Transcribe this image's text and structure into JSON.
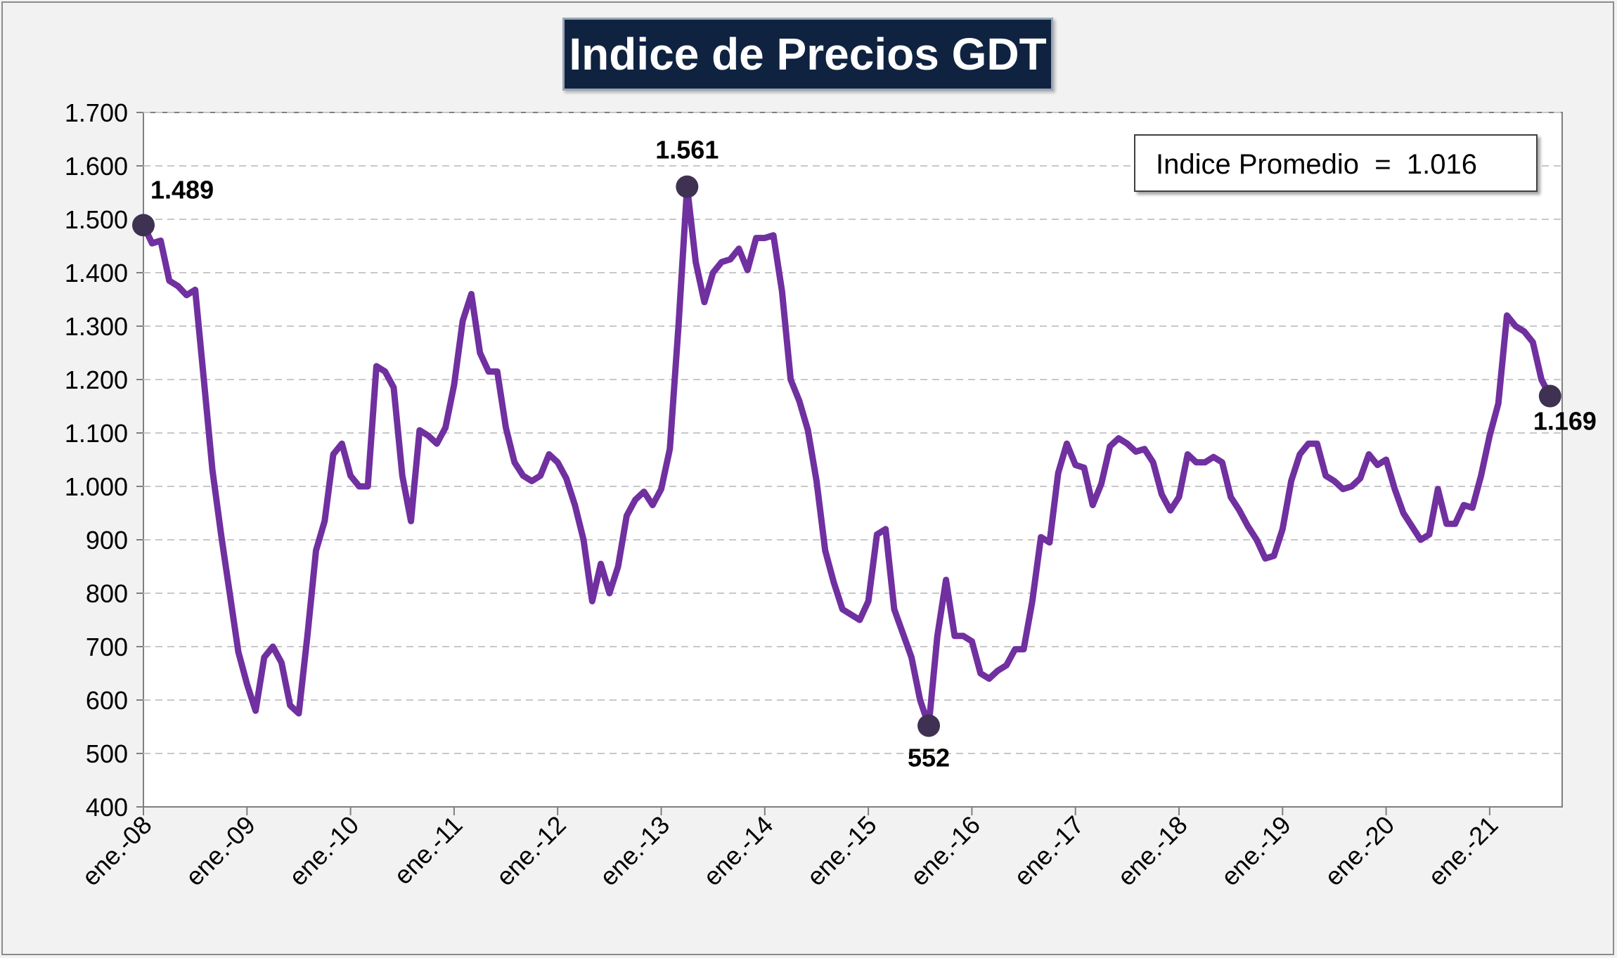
{
  "chart_data": {
    "type": "line",
    "title": "Indice de Precios GDT",
    "ylim": [
      400,
      1700
    ],
    "yticks": [
      400,
      500,
      600,
      700,
      800,
      900,
      1000,
      1100,
      1200,
      1300,
      1400,
      1500,
      1600,
      1700
    ],
    "ytick_labels": [
      "400",
      "500",
      "600",
      "700",
      "800",
      "900",
      "1.000",
      "1.100",
      "1.200",
      "1.300",
      "1.400",
      "1.500",
      "1.600",
      "1.700"
    ],
    "xtick_labels": [
      "ene.-08",
      "ene.-09",
      "ene.-10",
      "ene.-11",
      "ene.-12",
      "ene.-13",
      "ene.-14",
      "ene.-15",
      "ene.-16",
      "ene.-17",
      "ene.-18",
      "ene.-19",
      "ene.-20",
      "ene.-21"
    ],
    "x_start": "2008-01",
    "grid": true,
    "series_color": "#7030a0",
    "marker_color": "#3f3151",
    "legend_box": {
      "text": "Indice Promedio  =  1.016"
    },
    "annotations": [
      {
        "index": 0,
        "label": "1.489",
        "value": 1489
      },
      {
        "index": 63,
        "label": "1.561",
        "value": 1561
      },
      {
        "index": 91,
        "label": "552",
        "value": 552
      },
      {
        "index": 163,
        "label": "1.169",
        "value": 1169
      }
    ],
    "series": [
      {
        "values": [
          1489,
          1455,
          1460,
          1385,
          1375,
          1358,
          1368,
          1200,
          1030,
          910,
          800,
          690,
          630,
          580,
          680,
          700,
          670,
          590,
          575,
          720,
          880,
          935,
          1060,
          1080,
          1020,
          1000,
          1000,
          1225,
          1215,
          1185,
          1020,
          935,
          1105,
          1095,
          1080,
          1110,
          1190,
          1310,
          1360,
          1250,
          1215,
          1215,
          1110,
          1045,
          1020,
          1010,
          1020,
          1060,
          1045,
          1015,
          965,
          900,
          785,
          855,
          800,
          850,
          945,
          975,
          990,
          965,
          995,
          1070,
          1300,
          1561,
          1420,
          1345,
          1400,
          1420,
          1425,
          1445,
          1405,
          1465,
          1465,
          1470,
          1365,
          1200,
          1160,
          1105,
          1010,
          880,
          820,
          770,
          760,
          750,
          785,
          910,
          920,
          770,
          725,
          680,
          600,
          552,
          720,
          825,
          720,
          720,
          710,
          650,
          640,
          655,
          665,
          695,
          695,
          785,
          905,
          895,
          1025,
          1080,
          1040,
          1035,
          965,
          1005,
          1075,
          1090,
          1080,
          1065,
          1070,
          1045,
          985,
          955,
          980,
          1060,
          1045,
          1045,
          1055,
          1045,
          980,
          955,
          925,
          900,
          865,
          870,
          920,
          1010,
          1060,
          1080,
          1080,
          1020,
          1010,
          995,
          1000,
          1015,
          1060,
          1040,
          1050,
          995,
          950,
          925,
          900,
          910,
          995,
          930,
          930,
          965,
          960,
          1020,
          1095,
          1155,
          1320,
          1300,
          1290,
          1270,
          1200,
          1169
        ]
      }
    ]
  }
}
